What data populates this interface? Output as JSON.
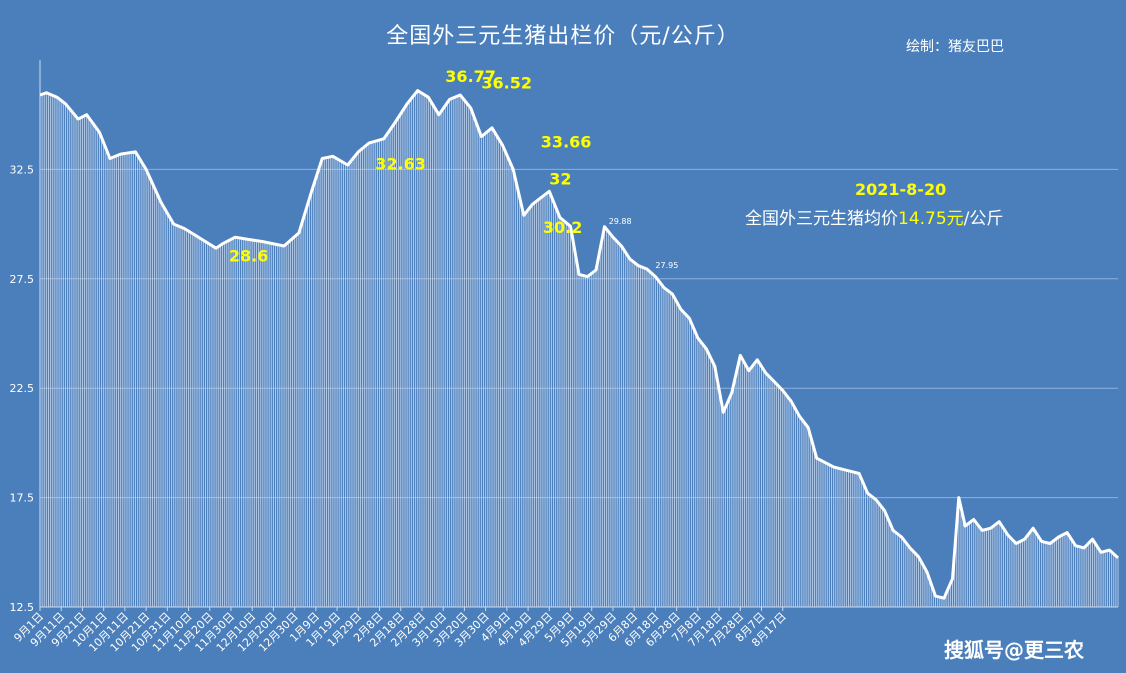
{
  "chart_data": {
    "type": "line",
    "title": "全国外三元生猪出栏价（元/公斤）",
    "credit": "绘制：猪友巴巴",
    "ylim": [
      12.5,
      37.5
    ],
    "yticks": [
      "12.5",
      "17.5",
      "22.5",
      "27.5",
      "32.5"
    ],
    "xticks": [
      "9月1日",
      "9月11日",
      "9月21日",
      "10月1日",
      "10月11日",
      "10月21日",
      "10月31日",
      "11月10日",
      "11月20日",
      "11月30日",
      "12月10日",
      "12月20日",
      "12月30日",
      "1月9日",
      "1月19日",
      "1月29日",
      "2月8日",
      "2月18日",
      "2月28日",
      "3月10日",
      "3月20日",
      "3月30日",
      "4月9日",
      "4月19日",
      "4月29日",
      "5月9日",
      "5月19日",
      "5月29日",
      "6月8日",
      "6月18日",
      "6月28日",
      "7月8日",
      "7月18日",
      "7月28日",
      "8月7日",
      "8月17日"
    ],
    "x_start": "2020-09-01",
    "x_end": "2021-08-20",
    "series": [
      {
        "values": [
          [
            0,
            35.9
          ],
          [
            3,
            36.0
          ],
          [
            8,
            35.8
          ],
          [
            12,
            35.5
          ],
          [
            18,
            34.8
          ],
          [
            22,
            35.0
          ],
          [
            28,
            34.2
          ],
          [
            33,
            33.0
          ],
          [
            38,
            33.2
          ],
          [
            45,
            33.3
          ],
          [
            50,
            32.5
          ],
          [
            57,
            31.0
          ],
          [
            63,
            30.0
          ],
          [
            68,
            29.8
          ],
          [
            73,
            29.5
          ],
          [
            78,
            29.2
          ],
          [
            83,
            28.9
          ],
          [
            86,
            29.1
          ],
          [
            92,
            29.4
          ],
          [
            98,
            29.3
          ],
          [
            105,
            29.2
          ],
          [
            115,
            29.0
          ],
          [
            122,
            29.6
          ],
          [
            128,
            31.5
          ],
          [
            133,
            33.0
          ],
          [
            138,
            33.1
          ],
          [
            145,
            32.7
          ],
          [
            150,
            33.3
          ],
          [
            155,
            33.7
          ],
          [
            162,
            33.9
          ],
          [
            167,
            34.6
          ],
          [
            173,
            35.5
          ],
          [
            178,
            36.1
          ],
          [
            183,
            35.8
          ],
          [
            188,
            35.0
          ],
          [
            193,
            35.7
          ],
          [
            198,
            35.9
          ],
          [
            203,
            35.3
          ],
          [
            208,
            34.0
          ],
          [
            213,
            34.4
          ],
          [
            218,
            33.6
          ],
          [
            223,
            32.5
          ],
          [
            228,
            30.4
          ],
          [
            232,
            30.9
          ],
          [
            236,
            31.2
          ],
          [
            240,
            31.5
          ],
          [
            245,
            30.3
          ],
          [
            250,
            29.9
          ],
          [
            254,
            27.7
          ],
          [
            258,
            27.6
          ],
          [
            262,
            27.9
          ],
          [
            266,
            29.88
          ],
          [
            270,
            29.4
          ],
          [
            274,
            29.0
          ],
          [
            278,
            28.4
          ],
          [
            282,
            28.1
          ],
          [
            286,
            27.95
          ],
          [
            290,
            27.6
          ],
          [
            294,
            27.1
          ],
          [
            298,
            26.8
          ],
          [
            302,
            26.1
          ],
          [
            306,
            25.7
          ],
          [
            310,
            24.8
          ],
          [
            314,
            24.3
          ],
          [
            318,
            23.5
          ],
          [
            322,
            21.4
          ],
          [
            326,
            22.3
          ],
          [
            330,
            24.0
          ],
          [
            334,
            23.3
          ],
          [
            338,
            23.8
          ],
          [
            342,
            23.2
          ],
          [
            346,
            22.8
          ],
          [
            350,
            22.4
          ],
          [
            354,
            21.9
          ],
          [
            358,
            21.2
          ],
          [
            362,
            20.7
          ],
          [
            366,
            19.3
          ],
          [
            370,
            19.1
          ],
          [
            374,
            18.9
          ],
          [
            378,
            18.8
          ],
          [
            382,
            18.7
          ],
          [
            386,
            18.6
          ],
          [
            390,
            17.7
          ],
          [
            394,
            17.4
          ],
          [
            398,
            16.9
          ],
          [
            402,
            16.0
          ],
          [
            406,
            15.7
          ],
          [
            410,
            15.2
          ],
          [
            414,
            14.8
          ],
          [
            418,
            14.1
          ],
          [
            422,
            13.0
          ],
          [
            426,
            12.9
          ],
          [
            430,
            13.8
          ],
          [
            433,
            17.5
          ],
          [
            436,
            16.2
          ],
          [
            440,
            16.5
          ],
          [
            444,
            16.0
          ],
          [
            448,
            16.1
          ],
          [
            452,
            16.4
          ],
          [
            456,
            15.8
          ],
          [
            460,
            15.4
          ],
          [
            464,
            15.6
          ],
          [
            468,
            16.1
          ],
          [
            472,
            15.5
          ],
          [
            476,
            15.4
          ],
          [
            480,
            15.7
          ],
          [
            484,
            15.9
          ],
          [
            488,
            15.3
          ],
          [
            492,
            15.2
          ],
          [
            496,
            15.6
          ],
          [
            500,
            15.0
          ],
          [
            504,
            15.1
          ],
          [
            508,
            14.75
          ]
        ]
      }
    ],
    "labels": [
      {
        "text": "36.77",
        "x": 191,
        "y": 36.5
      },
      {
        "text": "36.52",
        "x": 208,
        "y": 36.2
      },
      {
        "text": "33.66",
        "x": 236,
        "y": 33.5
      },
      {
        "text": "32.63",
        "x": 158,
        "y": 32.5
      },
      {
        "text": "32",
        "x": 240,
        "y": 31.8
      },
      {
        "text": "30.2",
        "x": 237,
        "y": 29.6
      },
      {
        "text": "28.6",
        "x": 89,
        "y": 28.3
      },
      {
        "text": "29.88",
        "x": 268,
        "y": 30.0
      },
      {
        "text": "27.95",
        "x": 290,
        "y": 28.0
      }
    ],
    "annotation": {
      "date": "2021-8-20",
      "prefix": "全国外三元生猪均价",
      "price": "14.75元",
      "suffix": "/公斤"
    },
    "grid": true,
    "colors": {
      "background": "#4b7fbc",
      "line": "#ffffff",
      "highlight": "#ffff00"
    }
  },
  "watermark": "搜狐号@更三农"
}
